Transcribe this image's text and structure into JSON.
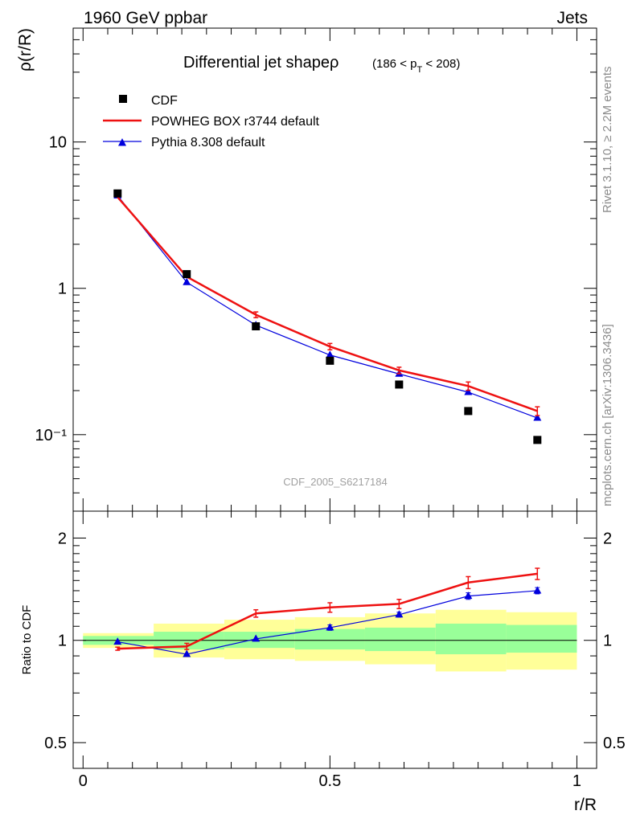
{
  "header": {
    "left": "1960 GeV ppbar",
    "right": "Jets"
  },
  "side_labels": {
    "rivet": "Rivet 3.1.10, ≥ 2.2M events",
    "mcplots": "mcplots.cern.ch [arXiv:1306.3436]"
  },
  "watermark": "CDF_2005_S6217184",
  "chart_data": [
    {
      "type": "line",
      "title_main": "Differential jet shapeρ",
      "title_sub": "(186 < p",
      "title_sub_index": "T",
      "title_sub_end": " < 208)",
      "ylabel": "ρ(r/R)",
      "yscale": "log",
      "ylim": [
        0.03,
        60
      ],
      "xlim": [
        -0.02,
        1.04
      ],
      "yticks": [
        {
          "value": 10,
          "label": "10"
        },
        {
          "value": 1,
          "label": "1"
        },
        {
          "value": 0.1,
          "label": "10⁻¹"
        }
      ],
      "x": [
        0.07,
        0.21,
        0.35,
        0.5,
        0.64,
        0.78,
        0.92
      ],
      "series": [
        {
          "name": "CDF",
          "kind": "points-square",
          "color": "#000000",
          "values": [
            4.45,
            1.25,
            0.55,
            0.32,
            0.22,
            0.145,
            0.092
          ]
        },
        {
          "name": "POWHEG BOX r3744 default",
          "kind": "line",
          "color": "#ee1111",
          "values": [
            4.2,
            1.2,
            0.66,
            0.4,
            0.275,
            0.215,
            0.145
          ],
          "errors": [
            0,
            0,
            0.03,
            0.02,
            0.014,
            0.014,
            0.01
          ]
        },
        {
          "name": "Pythia 8.308 default",
          "kind": "line-triangle",
          "color": "#0000dd",
          "values": [
            4.3,
            1.1,
            0.56,
            0.35,
            0.26,
            0.195,
            0.13
          ],
          "errors": [
            0,
            0,
            0,
            0,
            0,
            0,
            0
          ]
        }
      ]
    },
    {
      "type": "line",
      "ylabel": "Ratio to CDF",
      "xlabel": "r/R",
      "yscale": "log",
      "ylim": [
        0.42,
        2.4
      ],
      "xlim": [
        -0.02,
        1.04
      ],
      "yticks": [
        {
          "value": 2,
          "label": "2"
        },
        {
          "value": 1,
          "label": "1"
        },
        {
          "value": 0.5,
          "label": "0.5"
        }
      ],
      "xticks": [
        {
          "value": 0,
          "label": "0"
        },
        {
          "value": 0.5,
          "label": "0.5"
        },
        {
          "value": 1,
          "label": "1"
        }
      ],
      "bands": {
        "edges": [
          0,
          0.143,
          0.286,
          0.429,
          0.571,
          0.714,
          0.857,
          1.0
        ],
        "inner": [
          [
            0.97,
            1.03
          ],
          [
            0.94,
            1.06
          ],
          [
            0.95,
            1.06
          ],
          [
            0.94,
            1.08
          ],
          [
            0.93,
            1.09
          ],
          [
            0.91,
            1.12
          ],
          [
            0.92,
            1.11
          ]
        ],
        "outer": [
          [
            0.95,
            1.05
          ],
          [
            0.89,
            1.12
          ],
          [
            0.88,
            1.15
          ],
          [
            0.87,
            1.17
          ],
          [
            0.85,
            1.2
          ],
          [
            0.81,
            1.23
          ],
          [
            0.82,
            1.21
          ]
        ],
        "inner_color": "#99ff99",
        "outer_color": "#ffff99"
      },
      "x": [
        0.07,
        0.21,
        0.35,
        0.5,
        0.64,
        0.78,
        0.92
      ],
      "series": [
        {
          "name": "POWHEG BOX r3744 default",
          "color": "#ee1111",
          "values": [
            0.945,
            0.96,
            1.2,
            1.25,
            1.28,
            1.48,
            1.57
          ],
          "errors": [
            0.01,
            0.02,
            0.03,
            0.04,
            0.04,
            0.06,
            0.06
          ]
        },
        {
          "name": "Pythia 8.308 default",
          "color": "#0000dd",
          "values": [
            0.99,
            0.91,
            1.01,
            1.09,
            1.19,
            1.35,
            1.4
          ],
          "errors": [
            0,
            0,
            0,
            0.02,
            0.02,
            0.03,
            0.03
          ]
        }
      ]
    }
  ]
}
